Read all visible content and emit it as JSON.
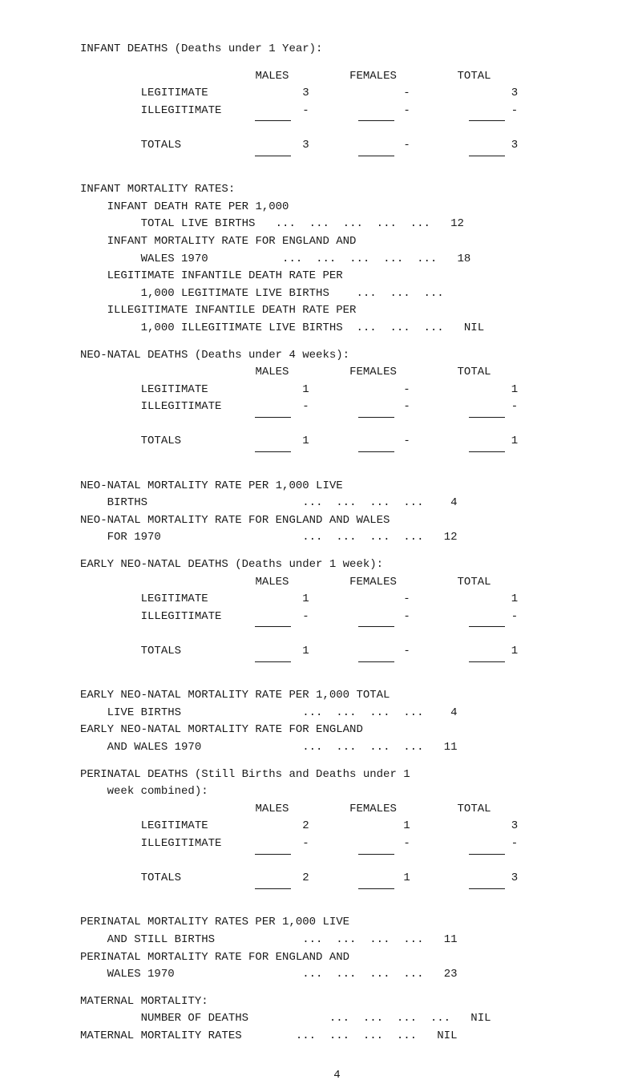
{
  "title": "INFANT DEATHS (Deaths under 1 Year):",
  "section1": {
    "header_males": "MALES",
    "header_females": "FEMALES",
    "header_total": "TOTAL",
    "rows": [
      {
        "label": "LEGITIMATE",
        "males": "3",
        "females": "-",
        "total": "3"
      },
      {
        "label": "ILLEGITIMATE",
        "males": "-",
        "females": "-",
        "total": "-"
      },
      {
        "label": "TOTALS",
        "males": "3",
        "females": "-",
        "total": "3"
      }
    ]
  },
  "section2": {
    "header": "INFANT MORTALITY RATES:",
    "lines": [
      {
        "text": "INFANT DEATH RATE PER 1,000"
      },
      {
        "text": "TOTAL LIVE BIRTHS",
        "value": "12"
      },
      {
        "text": "INFANT MORTALITY RATE FOR ENGLAND AND"
      },
      {
        "text": "WALES 1970",
        "value": "18"
      },
      {
        "text": "LEGITIMATE INFANTILE DEATH RATE PER"
      },
      {
        "text": "1,000 LEGITIMATE LIVE BIRTHS",
        "value": "..."
      },
      {
        "text": "ILLEGITIMATE INFANTILE DEATH RATE PER"
      },
      {
        "text": "1,000 ILLEGITIMATE LIVE BIRTHS",
        "value": "NIL"
      }
    ]
  },
  "section3": {
    "header": "NEO-NATAL DEATHS (Deaths under 4 weeks):",
    "cols": {
      "males": "MALES",
      "females": "FEMALES",
      "total": "TOTAL"
    },
    "rows": [
      {
        "label": "LEGITIMATE",
        "males": "1",
        "females": "-",
        "total": "1"
      },
      {
        "label": "ILLEGITIMATE",
        "males": "-",
        "females": "-",
        "total": "-"
      },
      {
        "label": "TOTALS",
        "males": "1",
        "females": "-",
        "total": "1"
      }
    ]
  },
  "section4": {
    "lines": [
      {
        "text": "NEO-NATAL MORTALITY RATE PER 1,000 LIVE"
      },
      {
        "text": "BIRTHS",
        "value": "4"
      },
      {
        "text": "NEO-NATAL MORTALITY RATE FOR ENGLAND AND WALES"
      },
      {
        "text": "FOR 1970",
        "value": "12"
      }
    ]
  },
  "section5": {
    "header": "EARLY NEO-NATAL DEATHS (Deaths under 1 week):",
    "cols": {
      "males": "MALES",
      "females": "FEMALES",
      "total": "TOTAL"
    },
    "rows": [
      {
        "label": "LEGITIMATE",
        "males": "1",
        "females": "-",
        "total": "1"
      },
      {
        "label": "ILLEGITIMATE",
        "males": "-",
        "females": "-",
        "total": "-"
      },
      {
        "label": "TOTALS",
        "males": "1",
        "females": "-",
        "total": "1"
      }
    ]
  },
  "section6": {
    "lines": [
      {
        "text": "EARLY NEO-NATAL MORTALITY RATE PER 1,000 TOTAL"
      },
      {
        "text": "LIVE BIRTHS",
        "value": "4"
      },
      {
        "text": "EARLY NEO-NATAL MORTALITY RATE FOR ENGLAND"
      },
      {
        "text": "AND WALES 1970",
        "value": "11"
      }
    ]
  },
  "section7": {
    "header": "PERINATAL DEATHS (Still Births and Deaths under 1",
    "header2": "week combined):",
    "cols": {
      "males": "MALES",
      "females": "FEMALES",
      "total": "TOTAL"
    },
    "rows": [
      {
        "label": "LEGITIMATE",
        "males": "2",
        "females": "1",
        "total": "3"
      },
      {
        "label": "ILLEGITIMATE",
        "males": "-",
        "females": "-",
        "total": "-"
      },
      {
        "label": "TOTALS",
        "males": "2",
        "females": "1",
        "total": "3"
      }
    ]
  },
  "section8": {
    "lines": [
      {
        "text": "PERINATAL MORTALITY RATES PER 1,000 LIVE"
      },
      {
        "text": "AND STILL BIRTHS",
        "value": "11"
      },
      {
        "text": "PERINATAL MORTALITY RATE FOR ENGLAND AND"
      },
      {
        "text": "WALES 1970",
        "value": "23"
      }
    ]
  },
  "section9": {
    "header": "MATERNAL MORTALITY:",
    "lines": [
      {
        "text": "NUMBER OF DEATHS",
        "value": "NIL"
      },
      {
        "text": "MATERNAL MORTALITY RATES",
        "value": "NIL"
      }
    ]
  },
  "dots": "...  ...  ...  ...  ...",
  "dots4": "...  ...  ...  ...",
  "page_number": "4"
}
